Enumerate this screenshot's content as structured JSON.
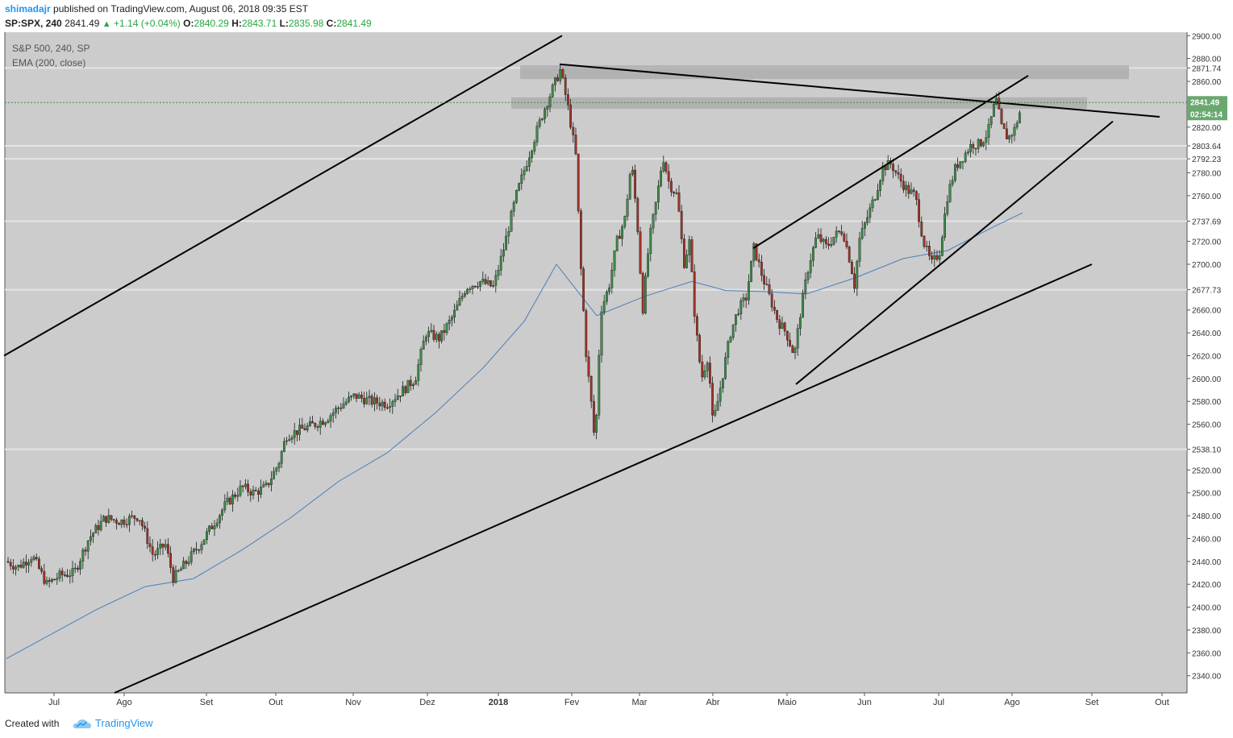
{
  "header": {
    "author": "shimadajr",
    "published_text": "published on TradingView.com, August 06, 2018 09:35 EST",
    "symbol": "SP:SPX, 240",
    "last": "2841.49",
    "change": "+1.14 (+0.04%)",
    "o_label": "O:",
    "o_value": "2840.29",
    "h_label": "H:",
    "h_value": "2843.71",
    "l_label": "L:",
    "l_value": "2835.98",
    "c_label": "C:",
    "c_value": "2841.49"
  },
  "legend": {
    "symbol_line": "S&P 500, 240, SP",
    "indicator_line": "EMA (200, close)"
  },
  "price_badge": {
    "value": "2841.49",
    "countdown": "02:54:14"
  },
  "footer": {
    "created_with": "Created with",
    "brand": "TradingView"
  },
  "colors": {
    "background": "#cccccc",
    "up_candle": "#3c8e48",
    "down_candle": "#a23227",
    "ema": "#4a7fb8",
    "trendline": "#000000",
    "badge": "#6aa870"
  },
  "chart_data": {
    "type": "candlestick",
    "symbol": "SP:SPX",
    "interval": "240",
    "ylim": [
      2325,
      2903
    ],
    "y_ticks": [
      2340,
      2360,
      2380,
      2400,
      2420,
      2440,
      2460,
      2480,
      2500,
      2520,
      2560,
      2580,
      2600,
      2620,
      2640,
      2660,
      2700,
      2720,
      2760,
      2780,
      2820,
      2860,
      2880,
      2900
    ],
    "marked_levels": [
      2871.74,
      2803.64,
      2792.23,
      2737.69,
      2677.73,
      2538.1
    ],
    "x_ticks": [
      "Jul",
      "Ago",
      "Set",
      "Out",
      "Nov",
      "Dez",
      "2018",
      "Fev",
      "Mar",
      "Abr",
      "Maio",
      "Jun",
      "Jul",
      "Ago",
      "Set",
      "Out"
    ],
    "x_tick_positions": [
      67,
      154,
      256,
      342,
      438,
      530,
      618,
      709,
      793,
      884,
      976,
      1072,
      1164,
      1255,
      1354,
      1441
    ],
    "price_path": [
      [
        8,
        2440
      ],
      [
        22,
        2435
      ],
      [
        40,
        2445
      ],
      [
        58,
        2420
      ],
      [
        75,
        2428
      ],
      [
        92,
        2430
      ],
      [
        110,
        2460
      ],
      [
        130,
        2478
      ],
      [
        150,
        2475
      ],
      [
        172,
        2480
      ],
      [
        190,
        2445
      ],
      [
        205,
        2455
      ],
      [
        215,
        2425
      ],
      [
        232,
        2440
      ],
      [
        248,
        2455
      ],
      [
        262,
        2470
      ],
      [
        280,
        2490
      ],
      [
        300,
        2505
      ],
      [
        315,
        2500
      ],
      [
        330,
        2505
      ],
      [
        345,
        2525
      ],
      [
        355,
        2550
      ],
      [
        372,
        2555
      ],
      [
        390,
        2560
      ],
      [
        405,
        2565
      ],
      [
        420,
        2575
      ],
      [
        440,
        2585
      ],
      [
        460,
        2580
      ],
      [
        480,
        2578
      ],
      [
        500,
        2590
      ],
      [
        515,
        2600
      ],
      [
        528,
        2640
      ],
      [
        545,
        2635
      ],
      [
        562,
        2655
      ],
      [
        578,
        2680
      ],
      [
        595,
        2685
      ],
      [
        612,
        2680
      ],
      [
        625,
        2715
      ],
      [
        640,
        2760
      ],
      [
        658,
        2800
      ],
      [
        672,
        2830
      ],
      [
        686,
        2855
      ],
      [
        695,
        2870
      ],
      [
        705,
        2835
      ],
      [
        714,
        2795
      ],
      [
        720,
        2700
      ],
      [
        727,
        2620
      ],
      [
        733,
        2580
      ],
      [
        738,
        2540
      ],
      [
        745,
        2660
      ],
      [
        755,
        2680
      ],
      [
        765,
        2720
      ],
      [
        775,
        2740
      ],
      [
        783,
        2790
      ],
      [
        790,
        2740
      ],
      [
        797,
        2660
      ],
      [
        805,
        2720
      ],
      [
        815,
        2760
      ],
      [
        822,
        2795
      ],
      [
        830,
        2770
      ],
      [
        840,
        2760
      ],
      [
        848,
        2700
      ],
      [
        855,
        2720
      ],
      [
        862,
        2650
      ],
      [
        870,
        2600
      ],
      [
        878,
        2620
      ],
      [
        884,
        2560
      ],
      [
        890,
        2580
      ],
      [
        898,
        2610
      ],
      [
        906,
        2640
      ],
      [
        915,
        2660
      ],
      [
        925,
        2670
      ],
      [
        935,
        2715
      ],
      [
        945,
        2690
      ],
      [
        955,
        2670
      ],
      [
        965,
        2650
      ],
      [
        975,
        2640
      ],
      [
        985,
        2620
      ],
      [
        993,
        2660
      ],
      [
        1003,
        2700
      ],
      [
        1013,
        2725
      ],
      [
        1025,
        2715
      ],
      [
        1035,
        2725
      ],
      [
        1045,
        2730
      ],
      [
        1055,
        2700
      ],
      [
        1060,
        2680
      ],
      [
        1065,
        2720
      ],
      [
        1075,
        2740
      ],
      [
        1085,
        2760
      ],
      [
        1095,
        2785
      ],
      [
        1105,
        2788
      ],
      [
        1115,
        2775
      ],
      [
        1125,
        2765
      ],
      [
        1135,
        2760
      ],
      [
        1145,
        2720
      ],
      [
        1155,
        2700
      ],
      [
        1165,
        2710
      ],
      [
        1175,
        2760
      ],
      [
        1185,
        2785
      ],
      [
        1195,
        2795
      ],
      [
        1205,
        2805
      ],
      [
        1215,
        2805
      ],
      [
        1225,
        2815
      ],
      [
        1235,
        2845
      ],
      [
        1242,
        2820
      ],
      [
        1250,
        2810
      ],
      [
        1258,
        2818
      ],
      [
        1268,
        2841
      ]
    ],
    "ema_path": [
      [
        8,
        2355
      ],
      [
        60,
        2375
      ],
      [
        120,
        2398
      ],
      [
        180,
        2418
      ],
      [
        240,
        2425
      ],
      [
        300,
        2450
      ],
      [
        360,
        2478
      ],
      [
        420,
        2510
      ],
      [
        480,
        2535
      ],
      [
        540,
        2570
      ],
      [
        600,
        2610
      ],
      [
        650,
        2650
      ],
      [
        690,
        2700
      ],
      [
        740,
        2655
      ],
      [
        800,
        2672
      ],
      [
        858,
        2685
      ],
      [
        900,
        2677
      ],
      [
        950,
        2676
      ],
      [
        1000,
        2674
      ],
      [
        1060,
        2688
      ],
      [
        1120,
        2705
      ],
      [
        1175,
        2712
      ],
      [
        1230,
        2732
      ],
      [
        1268,
        2745
      ]
    ],
    "resistance_zones": [
      {
        "x1": 645,
        "x2": 1400,
        "low": 2862,
        "high": 2874
      },
      {
        "x1": 634,
        "x2": 1348,
        "low": 2836,
        "high": 2846
      }
    ],
    "trendlines": [
      {
        "x1": 5,
        "y1": 2620,
        "x2": 697,
        "y2": 2900
      },
      {
        "x1": 142,
        "y1": 2325,
        "x2": 1354,
        "y2": 2700
      },
      {
        "x1": 694,
        "y1": 2875,
        "x2": 1438,
        "y2": 2829
      },
      {
        "x1": 934,
        "y1": 2714,
        "x2": 1275,
        "y2": 2865
      },
      {
        "x1": 987,
        "y1": 2595,
        "x2": 1380,
        "y2": 2825
      }
    ]
  }
}
